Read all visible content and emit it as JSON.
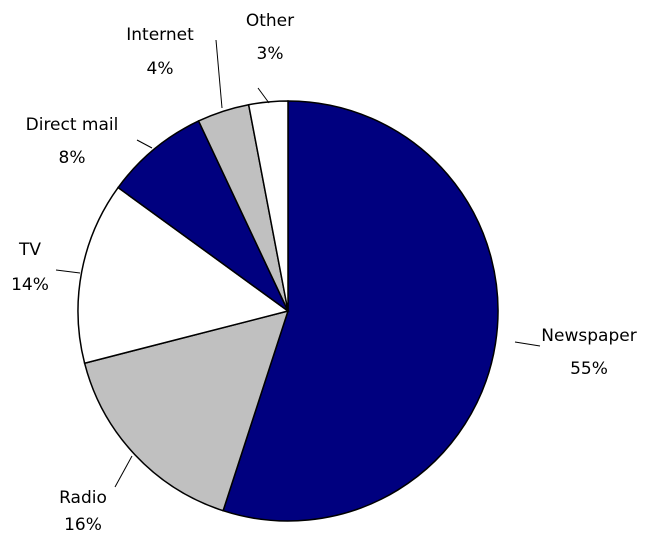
{
  "chart_data": {
    "type": "pie",
    "title": "",
    "start": "12 o'clock",
    "direction": "clockwise",
    "slices": [
      {
        "name": "Newspaper",
        "value": 55,
        "value_label": "55%",
        "color": "#00007F"
      },
      {
        "name": "Radio",
        "value": 16,
        "value_label": "16%",
        "color": "#C0C0C0"
      },
      {
        "name": "TV",
        "value": 14,
        "value_label": "14%",
        "color": "#FFFFFF"
      },
      {
        "name": "Direct mail",
        "value": 8,
        "value_label": "8%",
        "color": "#00007F"
      },
      {
        "name": "Internet",
        "value": 4,
        "value_label": "4%",
        "color": "#C0C0C0"
      },
      {
        "name": "Other",
        "value": 3,
        "value_label": "3%",
        "color": "#FFFFFF"
      }
    ]
  }
}
